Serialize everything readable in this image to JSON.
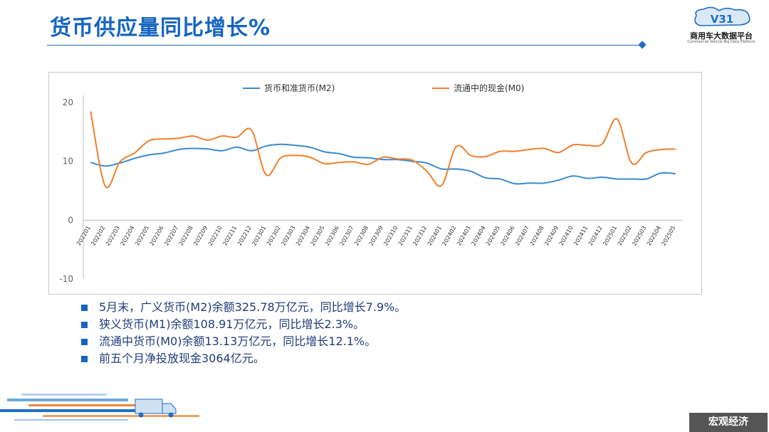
{
  "header": {
    "title": "货币供应量同比增长%",
    "logo_text": "V31",
    "logo_name": "商用车大数据平台",
    "logo_sub": "Commercial Vehicle Big Data Platform"
  },
  "bullets": [
    "5月末，广义货币(M2)余额325.78万亿元，同比增长7.9%。",
    "狭义货币(M1)余额108.91万亿元，同比增长2.3%。",
    "流通中货币(M0)余额13.13万亿元，同比增长12.1%。",
    "前五个月净投放现金3064亿元。"
  ],
  "footer": {
    "tag": "宏观经济"
  },
  "colors": {
    "m2": "#3a8bd2",
    "m0": "#f07f2c",
    "accent": "#1565c0"
  },
  "chart_data": {
    "type": "line",
    "title": "",
    "xlabel": "",
    "ylabel": "",
    "ylim": [
      -10,
      20
    ],
    "yticks": [
      -10,
      0,
      10,
      20
    ],
    "grid": false,
    "legend_position": "top-center",
    "categories": [
      "202201",
      "202202",
      "202203",
      "202204",
      "202205",
      "202206",
      "202207",
      "202208",
      "202209",
      "202210",
      "202211",
      "202212",
      "202301",
      "202302",
      "202303",
      "202304",
      "202305",
      "202306",
      "202307",
      "202308",
      "202309",
      "202310",
      "202311",
      "202312",
      "202401",
      "202402",
      "202403",
      "202404",
      "202405",
      "202406",
      "202407",
      "202408",
      "202409",
      "202410",
      "202411",
      "202412",
      "202501",
      "202502",
      "202503",
      "202504",
      "202505"
    ],
    "series": [
      {
        "name": "货币和准货币(M2)",
        "color": "#3a8bd2",
        "values": [
          9.8,
          9.2,
          9.7,
          10.5,
          11.1,
          11.4,
          12.0,
          12.2,
          12.1,
          11.8,
          12.4,
          11.8,
          12.6,
          12.9,
          12.7,
          12.4,
          11.6,
          11.3,
          10.7,
          10.6,
          10.3,
          10.3,
          10.0,
          9.7,
          8.7,
          8.7,
          8.3,
          7.2,
          7.0,
          6.2,
          6.3,
          6.3,
          6.8,
          7.5,
          7.1,
          7.3,
          7.0,
          7.0,
          7.0,
          8.0,
          7.9
        ]
      },
      {
        "name": "流通中的现金(M0)",
        "color": "#f07f2c",
        "values": [
          18.5,
          5.8,
          9.9,
          11.4,
          13.5,
          13.8,
          13.9,
          14.3,
          13.6,
          14.3,
          14.1,
          15.3,
          7.7,
          10.6,
          11.0,
          10.7,
          9.6,
          9.8,
          9.9,
          9.5,
          10.7,
          10.4,
          10.2,
          8.3,
          5.9,
          12.5,
          11.0,
          10.8,
          11.7,
          11.7,
          12.0,
          12.2,
          11.5,
          12.8,
          12.7,
          13.0,
          17.2,
          9.7,
          11.5,
          12.0,
          12.1
        ]
      }
    ]
  }
}
